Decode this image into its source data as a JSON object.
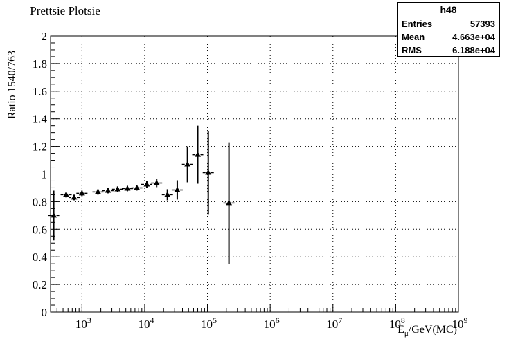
{
  "title": "Prettsie Plotsie",
  "stats": {
    "name": "h48",
    "rows": [
      {
        "label": "Entries",
        "value": "57393"
      },
      {
        "label": "Mean",
        "value": "4.663e+04"
      },
      {
        "label": "RMS",
        "value": "6.188e+04"
      }
    ]
  },
  "chart_data": {
    "type": "scatter",
    "title": "Prettsie Plotsie",
    "xlabel": "E_μ/GeV(MC)",
    "ylabel": "Ratio 1540/763",
    "xscale": "log",
    "xlim": [
      316,
      1000000000
    ],
    "ylim": [
      0,
      2
    ],
    "yticks": [
      0,
      0.2,
      0.4,
      0.6,
      0.8,
      1,
      1.2,
      1.4,
      1.6,
      1.8,
      2
    ],
    "xticks": [
      "10^3",
      "10^4",
      "10^5",
      "10^6",
      "10^7",
      "10^8",
      "10^9"
    ],
    "grid": true,
    "marker": "triangle",
    "points": [
      {
        "x": 355,
        "y": 0.7,
        "err": 0.18
      },
      {
        "x": 560,
        "y": 0.85,
        "err": 0.02
      },
      {
        "x": 750,
        "y": 0.83,
        "err": 0.02
      },
      {
        "x": 1000,
        "y": 0.86,
        "err": 0.02
      },
      {
        "x": 1800,
        "y": 0.87,
        "err": 0.02
      },
      {
        "x": 2600,
        "y": 0.88,
        "err": 0.02
      },
      {
        "x": 3700,
        "y": 0.89,
        "err": 0.02
      },
      {
        "x": 5300,
        "y": 0.895,
        "err": 0.02
      },
      {
        "x": 7500,
        "y": 0.9,
        "err": 0.02
      },
      {
        "x": 10800,
        "y": 0.925,
        "err": 0.025
      },
      {
        "x": 15500,
        "y": 0.935,
        "err": 0.03
      },
      {
        "x": 23000,
        "y": 0.85,
        "err": 0.04
      },
      {
        "x": 33000,
        "y": 0.885,
        "err": 0.07
      },
      {
        "x": 48000,
        "y": 1.07,
        "err": 0.13
      },
      {
        "x": 70000,
        "y": 1.14,
        "err": 0.21
      },
      {
        "x": 103000,
        "y": 1.01,
        "err": 0.3
      },
      {
        "x": 220000,
        "y": 0.79,
        "err": 0.44
      }
    ]
  }
}
